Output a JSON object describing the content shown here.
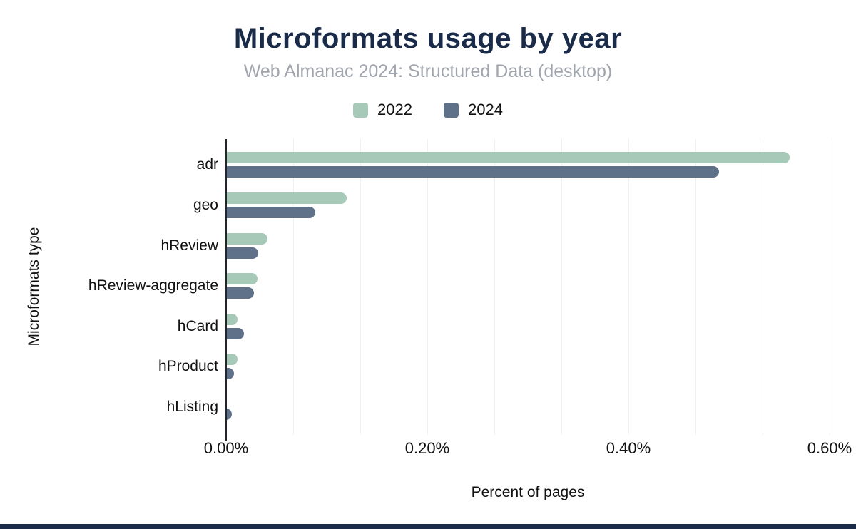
{
  "header": {
    "title": "Microformats usage by year",
    "subtitle": "Web Almanac 2024: Structured Data (desktop)"
  },
  "legend": {
    "items": [
      {
        "label": "2022",
        "color": "#a7c9b8"
      },
      {
        "label": "2024",
        "color": "#5f7189"
      }
    ]
  },
  "chart_data": {
    "type": "bar",
    "orientation": "horizontal",
    "title": "Microformats usage by year",
    "subtitle": "Web Almanac 2024: Structured Data (desktop)",
    "categories": [
      "adr",
      "geo",
      "hReview",
      "hReview-aggregate",
      "hCard",
      "hProduct",
      "hListing"
    ],
    "series": [
      {
        "name": "2022",
        "color": "#a7c9b8",
        "values": [
          0.56,
          0.12,
          0.041,
          0.031,
          0.011,
          0.011,
          0.001
        ]
      },
      {
        "name": "2024",
        "color": "#5f7189",
        "values": [
          0.49,
          0.089,
          0.032,
          0.028,
          0.018,
          0.008,
          0.006
        ]
      }
    ],
    "xlabel": "Percent of pages",
    "ylabel": "Microformats type",
    "unit": "%",
    "xlim": [
      0,
      0.6
    ],
    "xtick_values": [
      0,
      0.2,
      0.4,
      0.6
    ],
    "xtick_labels": [
      "0.00%",
      "0.20%",
      "0.40%",
      "0.60%"
    ],
    "minor_gridlines_per_major": 3,
    "grid": true,
    "legend_position": "top"
  },
  "footer": {
    "accent_color": "#1a2b49",
    "title_color": "#1a2b49"
  }
}
